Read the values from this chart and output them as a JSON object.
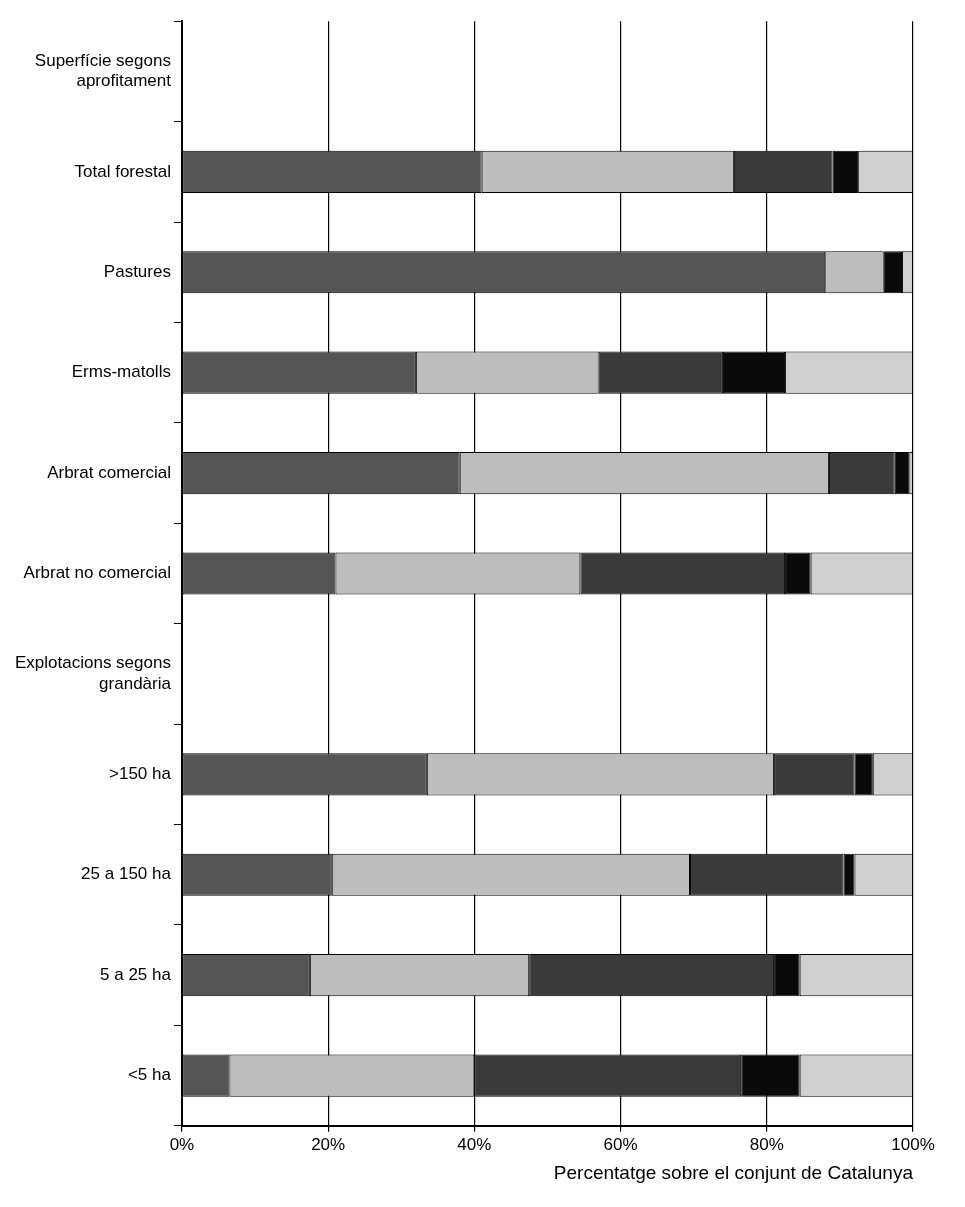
{
  "chart_data": {
    "type": "bar",
    "orientation": "horizontal",
    "stacked": true,
    "categories": [
      "Superfície segons aprofitament",
      "Total forestal",
      "Pastures",
      "Erms-matolls",
      "Arbrat comercial",
      "Arbrat no comercial",
      "Explotacions segons grandària",
      ">150 ha",
      "25 a 150 ha",
      "5 a 25 ha",
      "<5 ha"
    ],
    "series": [
      {
        "color": "#555555",
        "values": [
          null,
          41,
          88,
          32,
          38,
          21,
          null,
          33.5,
          20.5,
          17.5,
          6.5
        ]
      },
      {
        "color": "#bdbdbd",
        "values": [
          null,
          34.5,
          8,
          25,
          50.5,
          33.5,
          null,
          47.5,
          49,
          30,
          33.5
        ]
      },
      {
        "color": "#3a3a3a",
        "values": [
          null,
          13.5,
          0,
          17,
          9,
          28,
          null,
          11,
          21,
          33.5,
          36.5
        ]
      },
      {
        "color": "#0a0a0a",
        "values": [
          null,
          3.5,
          2.5,
          8.5,
          2,
          3.5,
          null,
          2.5,
          1.5,
          3.5,
          8
        ]
      },
      {
        "color": "#cfcfcf",
        "values": [
          null,
          7.5,
          1.5,
          17.5,
          0.5,
          14,
          null,
          5.5,
          8,
          15.5,
          15.5
        ]
      }
    ],
    "xlim": [
      0,
      100
    ],
    "xticks": [
      {
        "value": 0,
        "label": "0%"
      },
      {
        "value": 20,
        "label": "20%"
      },
      {
        "value": 40,
        "label": "40%"
      },
      {
        "value": 60,
        "label": "60%"
      },
      {
        "value": 80,
        "label": "80%"
      },
      {
        "value": 100,
        "label": "100%"
      }
    ],
    "xlabel": "Percentatge sobre el conjunt de Catalunya",
    "grid": "x",
    "legend": false
  }
}
